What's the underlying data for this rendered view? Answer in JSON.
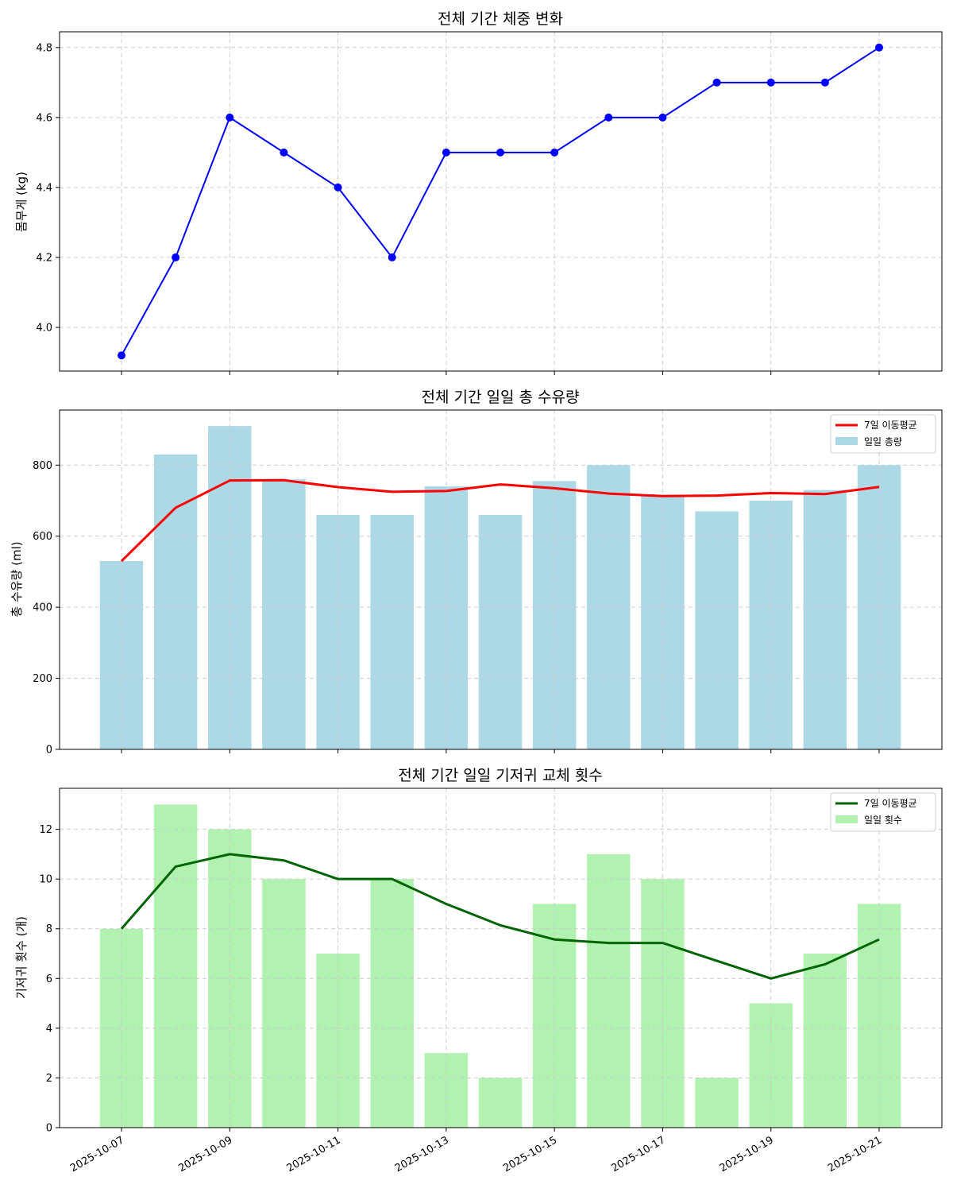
{
  "x_dates": [
    "2025-10-07",
    "2025-10-08",
    "2025-10-09",
    "2025-10-10",
    "2025-10-11",
    "2025-10-12",
    "2025-10-13",
    "2025-10-14",
    "2025-10-15",
    "2025-10-16",
    "2025-10-17",
    "2025-10-18",
    "2025-10-19",
    "2025-10-20",
    "2025-10-21"
  ],
  "x_tick_labels": [
    "2025-10-07",
    "2025-10-09",
    "2025-10-11",
    "2025-10-13",
    "2025-10-15",
    "2025-10-17",
    "2025-10-19",
    "2025-10-21"
  ],
  "colors": {
    "weight_line": "#0000ff",
    "feeding_bar": "#add8e6",
    "feeding_ma": "#ff0000",
    "diaper_bar": "#b2f2b0",
    "diaper_ma": "#006400",
    "grid": "#cccccc"
  },
  "chart_data": [
    {
      "type": "line",
      "title": "전체 기간 체중 변화",
      "ylabel": "몸무게 (kg)",
      "ylim": [
        3.875,
        4.845
      ],
      "yticks": [
        4.0,
        4.2,
        4.4,
        4.6,
        4.8
      ],
      "ytick_labels": [
        "4.0",
        "4.2",
        "4.4",
        "4.6",
        "4.8"
      ],
      "grid": true,
      "series": [
        {
          "type": "line",
          "marker": "circle",
          "values": [
            3.92,
            4.2,
            4.6,
            4.5,
            4.4,
            4.2,
            4.5,
            4.5,
            4.5,
            4.6,
            4.6,
            4.7,
            4.7,
            4.7,
            4.8
          ]
        }
      ]
    },
    {
      "type": "bar",
      "title": "전체 기간 일일 총 수유량",
      "ylabel": "총 수유량 (ml)",
      "ylim": [
        0,
        955
      ],
      "yticks": [
        0,
        200,
        400,
        600,
        800
      ],
      "ytick_labels": [
        "0",
        "200",
        "400",
        "600",
        "800"
      ],
      "grid": true,
      "legend_position": "top-right",
      "series": [
        {
          "name": "일일 총량",
          "type": "bar",
          "values": [
            530,
            830,
            910,
            760,
            660,
            660,
            740,
            660,
            755,
            800,
            715,
            670,
            700,
            730,
            800
          ]
        },
        {
          "name": "7일 이동평균",
          "type": "line",
          "values": [
            530,
            680,
            756.7,
            757.5,
            738,
            725,
            727.1,
            745.7,
            735,
            720,
            712.9,
            714.3,
            721.4,
            718.6,
            738.6
          ]
        }
      ]
    },
    {
      "type": "bar",
      "title": "전체 기간 일일 기저귀 교체 횟수",
      "ylabel": "기저귀 횟수 (개)",
      "ylim": [
        0,
        13.65
      ],
      "yticks": [
        0,
        2,
        4,
        6,
        8,
        10,
        12
      ],
      "ytick_labels": [
        "0",
        "2",
        "4",
        "6",
        "8",
        "10",
        "12"
      ],
      "grid": true,
      "legend_position": "top-right",
      "series": [
        {
          "name": "일일 횟수",
          "type": "bar",
          "values": [
            8,
            13,
            12,
            10,
            7,
            10,
            3,
            2,
            9,
            11,
            10,
            2,
            5,
            7,
            9
          ]
        },
        {
          "name": "7일 이동평균",
          "type": "line",
          "values": [
            8,
            10.5,
            11,
            10.75,
            10,
            10,
            9,
            8.14,
            7.57,
            7.43,
            7.43,
            6.71,
            6,
            6.57,
            7.57
          ]
        }
      ]
    }
  ]
}
